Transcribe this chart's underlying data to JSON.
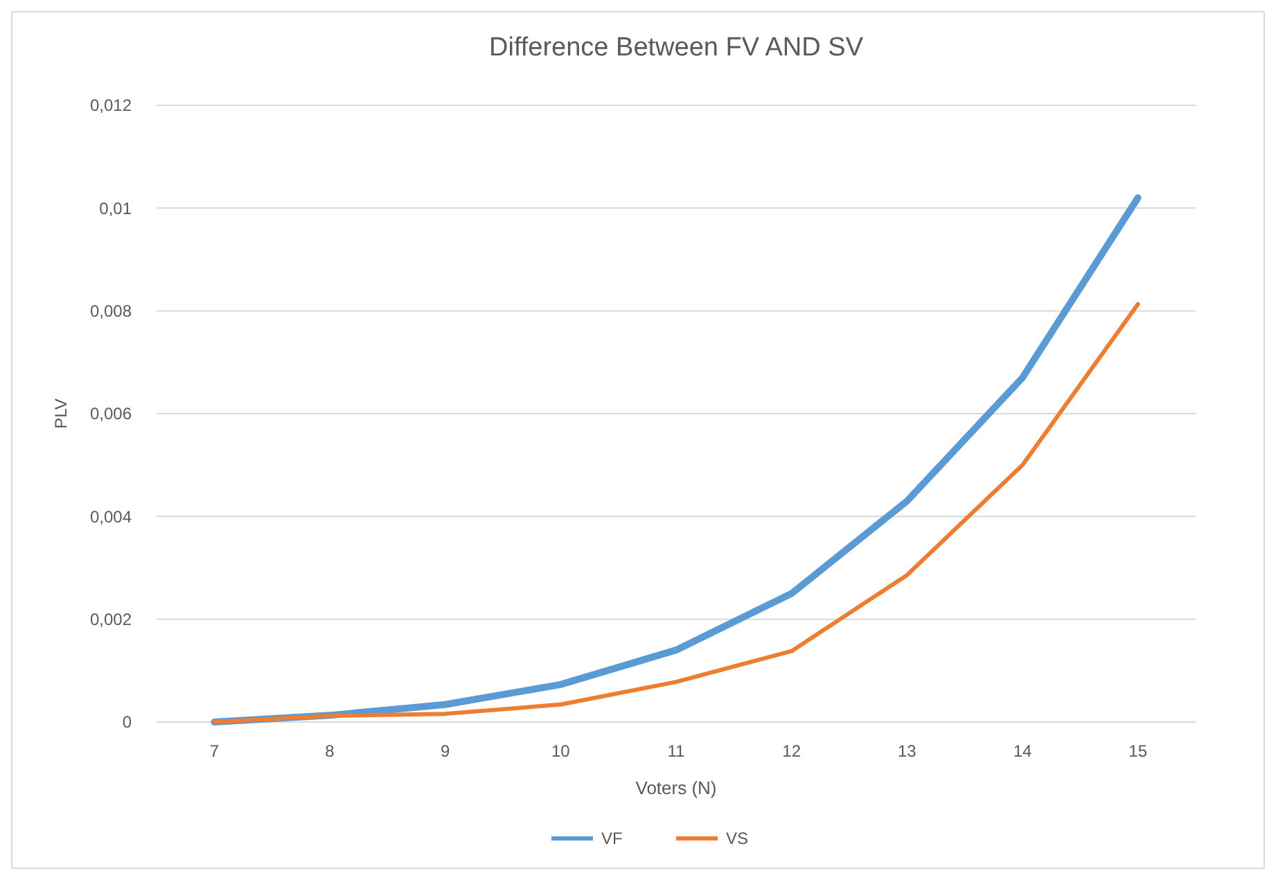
{
  "chart_data": {
    "type": "line",
    "title": "Difference Between FV AND SV",
    "xlabel": "Voters (N)",
    "ylabel": "PLV",
    "categories": [
      "7",
      "8",
      "9",
      "10",
      "11",
      "12",
      "13",
      "14",
      "15"
    ],
    "series": [
      {
        "name": "VF",
        "color": "#5b9bd5",
        "values": [
          0,
          0.00013,
          0.00034,
          0.00073,
          0.0014,
          0.0025,
          0.0043,
          0.0067,
          0.0102
        ]
      },
      {
        "name": "VS",
        "color": "#ed7d31",
        "values": [
          0,
          0.00012,
          0.00016,
          0.00034,
          0.00078,
          0.00138,
          0.00286,
          0.005,
          0.00813
        ]
      }
    ],
    "ylim": [
      0,
      0.012
    ],
    "yticks": [
      {
        "value": 0,
        "label": "0"
      },
      {
        "value": 0.002,
        "label": "0,002"
      },
      {
        "value": 0.004,
        "label": "0,004"
      },
      {
        "value": 0.006,
        "label": "0,006"
      },
      {
        "value": 0.008,
        "label": "0,008"
      },
      {
        "value": 0.01,
        "label": "0,01"
      },
      {
        "value": 0.012,
        "label": "0,012"
      }
    ],
    "grid": "y",
    "legend": "bottom",
    "marker": "none",
    "line_style": "solid"
  }
}
